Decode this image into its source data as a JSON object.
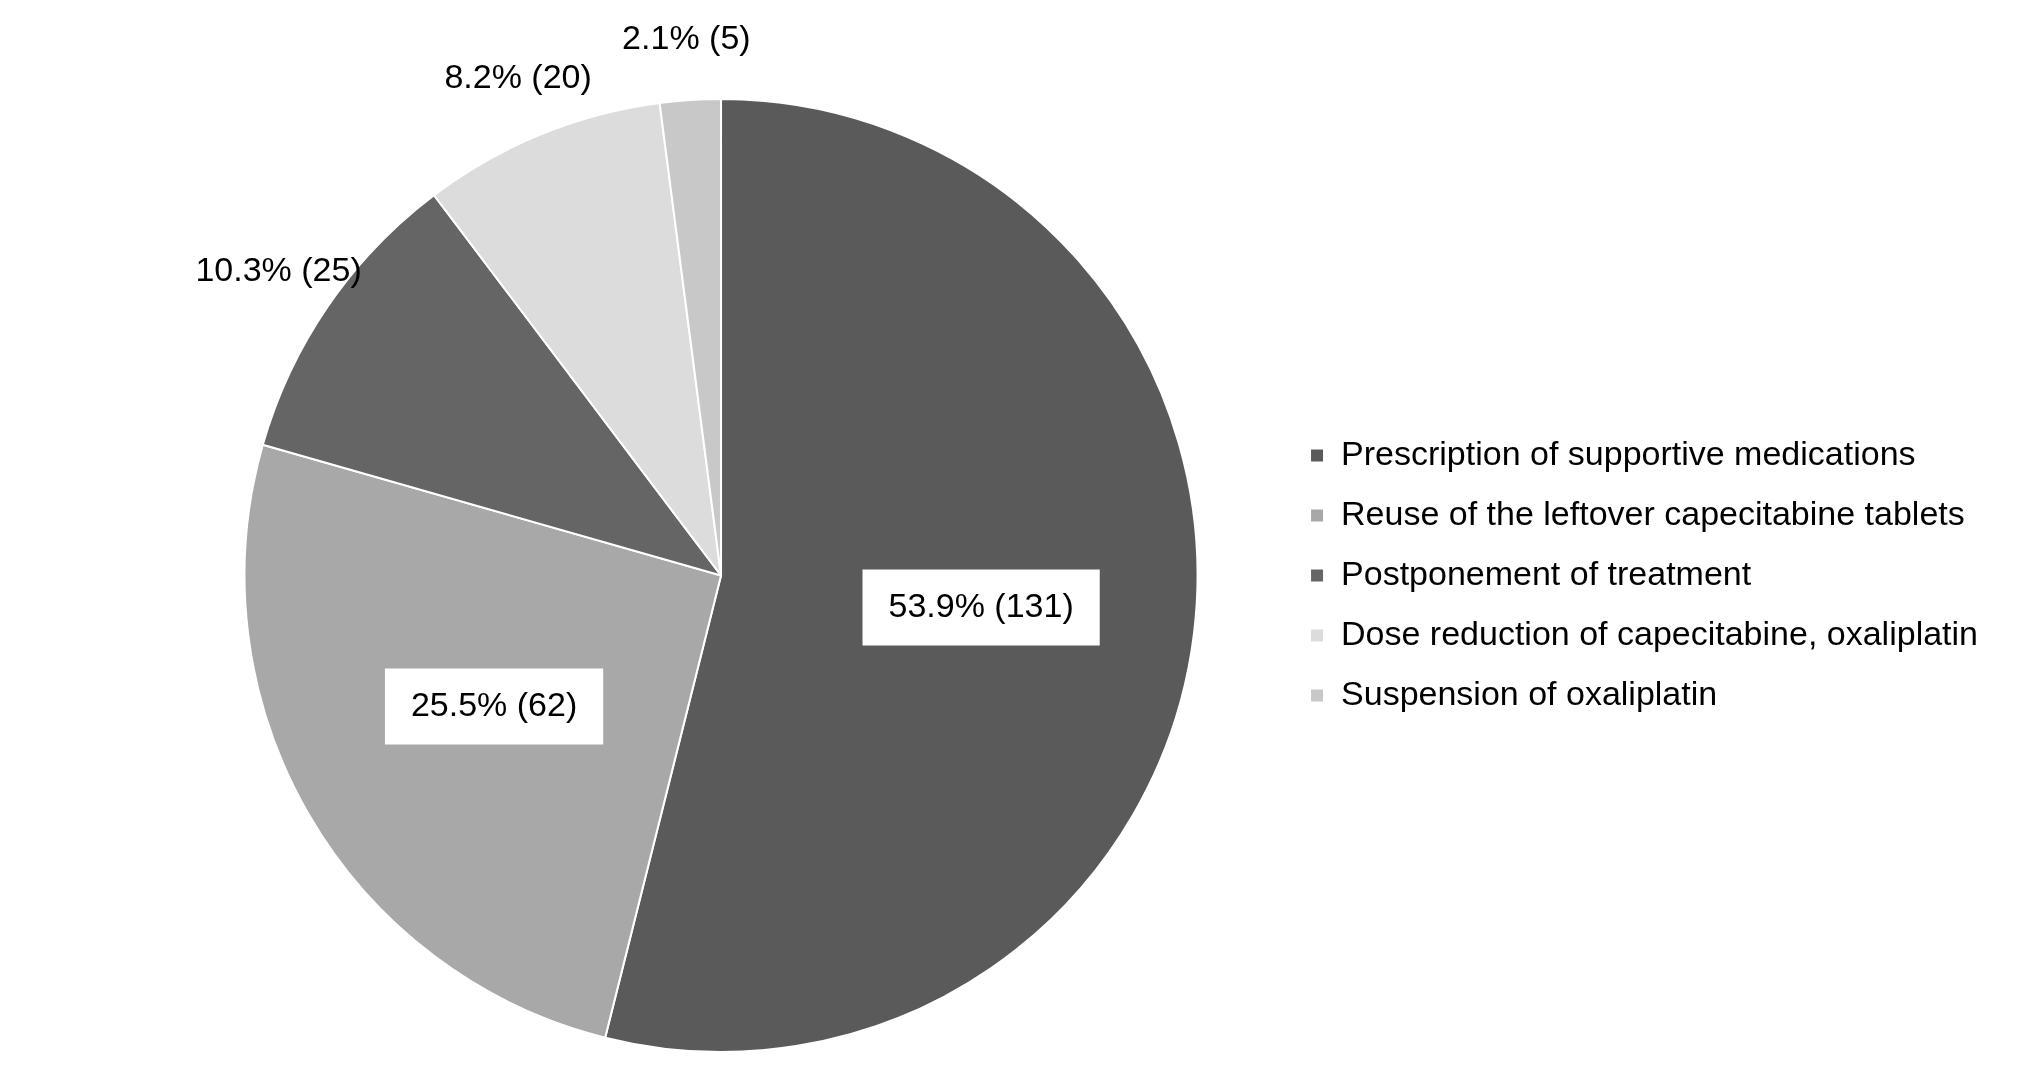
{
  "chart_data": {
    "type": "pie",
    "categories": [
      "Prescription of supportive medications",
      "Reuse of the leftover capecitabine tablets",
      "Postponement of treatment",
      "Dose reduction of capecitabine, oxaliplatin",
      "Suspension of oxaliplatin"
    ],
    "values": [
      131,
      62,
      25,
      20,
      5
    ],
    "value_labels": [
      "53.9% (131)",
      "25.5% (62)",
      "10.3% (25)",
      "8.2% (20)",
      "2.1% (5)"
    ],
    "colors": [
      "#5a5a5a",
      "#a8a8a8",
      "#656565",
      "#dcdcdc",
      "#c8c8c8"
    ],
    "legend": "right"
  }
}
